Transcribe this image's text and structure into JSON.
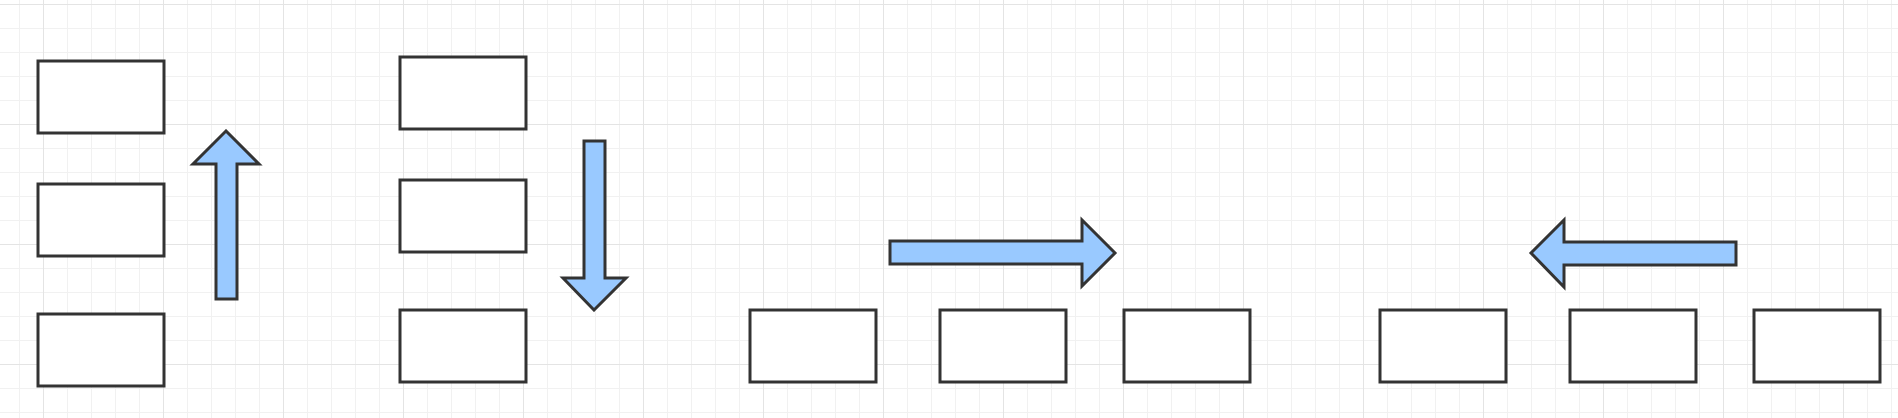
{
  "diagram": {
    "colors": {
      "box_fill": "#ffffff",
      "box_stroke": "#333333",
      "arrow_fill": "#99c9ff",
      "grid_major": "#e4e4e4",
      "grid_minor": "#f1f1f1"
    },
    "groups": [
      {
        "name": "vertical-stack-arrow-up",
        "box_count": 3,
        "arrow": "up"
      },
      {
        "name": "vertical-stack-arrow-down",
        "box_count": 3,
        "arrow": "down"
      },
      {
        "name": "horizontal-row-arrow-right",
        "box_count": 3,
        "arrow": "right"
      },
      {
        "name": "horizontal-row-arrow-left",
        "box_count": 3,
        "arrow": "left"
      }
    ]
  }
}
